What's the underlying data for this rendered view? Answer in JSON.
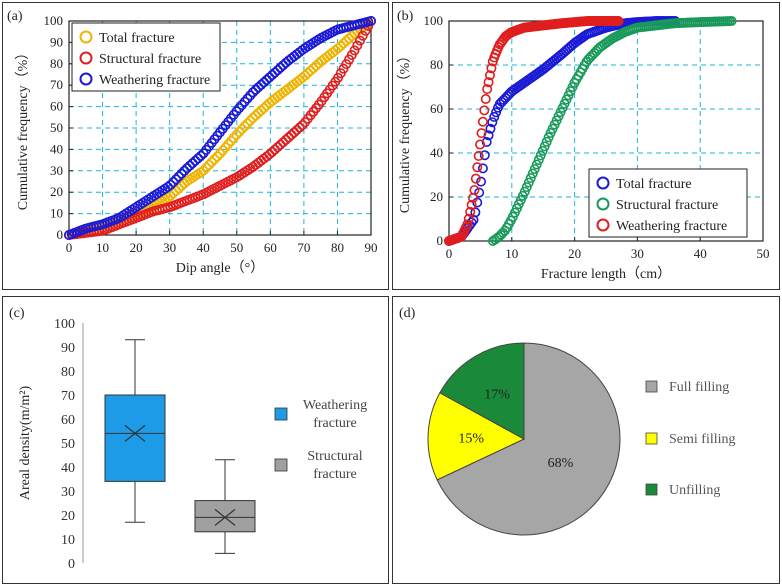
{
  "chart_data": [
    {
      "panel": "(a)",
      "type": "scatter",
      "title": "",
      "xlabel": "Dip angle（°）",
      "ylabel": "Cumulative frequency（%）",
      "xlim": [
        0,
        90
      ],
      "ylim": [
        0,
        100
      ],
      "xticks": [
        "0",
        "10",
        "20",
        "30",
        "40",
        "50",
        "60",
        "70",
        "80",
        "90"
      ],
      "yticks": [
        "0",
        "10",
        "20",
        "30",
        "40",
        "50",
        "60",
        "70",
        "80",
        "90",
        "100"
      ],
      "grid": true,
      "legend_position": "top-left",
      "series": [
        {
          "name": "Total fracture",
          "color": "#f0b400",
          "x": [
            0,
            5,
            10,
            15,
            20,
            25,
            30,
            35,
            40,
            45,
            50,
            55,
            60,
            65,
            70,
            75,
            80,
            85,
            90
          ],
          "y": [
            0,
            2,
            4,
            7,
            10,
            13,
            18,
            25,
            30,
            38,
            47,
            55,
            62,
            68,
            74,
            81,
            87,
            94,
            100
          ]
        },
        {
          "name": "Structural fracture",
          "color": "#e01e1e",
          "x": [
            0,
            5,
            10,
            15,
            20,
            25,
            30,
            35,
            40,
            45,
            50,
            55,
            60,
            65,
            70,
            75,
            80,
            85,
            90
          ],
          "y": [
            0,
            1,
            2,
            5,
            8,
            11,
            13,
            16,
            19,
            23,
            27,
            32,
            38,
            45,
            52,
            62,
            73,
            86,
            100
          ]
        },
        {
          "name": "Weathering fracture",
          "color": "#1a1ad6",
          "x": [
            0,
            5,
            10,
            15,
            20,
            25,
            30,
            35,
            40,
            45,
            50,
            55,
            60,
            65,
            70,
            75,
            80,
            85,
            90
          ],
          "y": [
            0,
            3,
            5,
            8,
            13,
            18,
            23,
            31,
            38,
            48,
            58,
            67,
            74,
            81,
            87,
            92,
            96,
            98,
            100
          ]
        }
      ]
    },
    {
      "panel": "(b)",
      "type": "scatter",
      "title": "",
      "xlabel": "Fracture length（cm）",
      "ylabel": "Cumulative frequency（%）",
      "xlim": [
        0,
        50
      ],
      "ylim": [
        0,
        100
      ],
      "xticks": [
        "0",
        "10",
        "20",
        "30",
        "40",
        "50"
      ],
      "yticks": [
        "0",
        "20",
        "40",
        "60",
        "80",
        "100"
      ],
      "grid": true,
      "legend_position": "bottom-right",
      "series": [
        {
          "name": "Total fracture",
          "color": "#1a1ad6",
          "x": [
            0,
            2,
            4,
            5,
            6,
            7,
            8,
            10,
            12,
            15,
            18,
            20,
            22,
            25,
            28,
            30,
            33,
            36
          ],
          "y": [
            0,
            2,
            10,
            25,
            45,
            55,
            62,
            68,
            72,
            78,
            85,
            90,
            94,
            97,
            99,
            99.5,
            100,
            100
          ]
        },
        {
          "name": "Structural fracture",
          "color": "#1a9a5a",
          "x": [
            7,
            8,
            9,
            10,
            12,
            14,
            16,
            18,
            20,
            22,
            24,
            26,
            28,
            30,
            33,
            36,
            40,
            45
          ],
          "y": [
            0,
            2,
            5,
            10,
            22,
            35,
            48,
            60,
            72,
            82,
            88,
            92,
            95,
            97,
            98,
            99,
            99.5,
            100
          ]
        },
        {
          "name": "Weathering fracture",
          "color": "#e01e1e",
          "x": [
            0,
            2,
            3,
            4,
            5,
            6,
            7,
            8,
            9,
            10,
            12,
            15,
            18,
            20,
            22,
            25,
            27
          ],
          "y": [
            0,
            2,
            8,
            22,
            45,
            68,
            82,
            89,
            93,
            95,
            97,
            98,
            99,
            99.5,
            100,
            100,
            100
          ]
        }
      ]
    },
    {
      "panel": "(c)",
      "type": "box",
      "title": "",
      "xlabel": "",
      "ylabel": "Areal density(m/m²)",
      "ylim": [
        0,
        100
      ],
      "yticks": [
        "0",
        "10",
        "20",
        "30",
        "40",
        "50",
        "60",
        "70",
        "80",
        "90",
        "100"
      ],
      "grid": false,
      "legend_position": "right",
      "series": [
        {
          "name": "Weathering fracture",
          "color": "#1e9be6",
          "min": 17,
          "q1": 34,
          "median": 54,
          "mean": 54,
          "q3": 70,
          "max": 93
        },
        {
          "name": "Structural fracture",
          "color": "#a0a0a0",
          "min": 4,
          "q1": 13,
          "median": 19,
          "mean": 19,
          "q3": 26,
          "max": 43
        }
      ]
    },
    {
      "panel": "(d)",
      "type": "pie",
      "title": "",
      "legend_position": "right",
      "slices": [
        {
          "name": "Full filling",
          "value": 68,
          "label": "68%",
          "color": "#a6a6a6"
        },
        {
          "name": "Semi filling",
          "value": 15,
          "label": "15%",
          "color": "#ffff00"
        },
        {
          "name": "Unfilling",
          "value": 17,
          "label": "17%",
          "color": "#1a8a3a"
        }
      ]
    }
  ]
}
